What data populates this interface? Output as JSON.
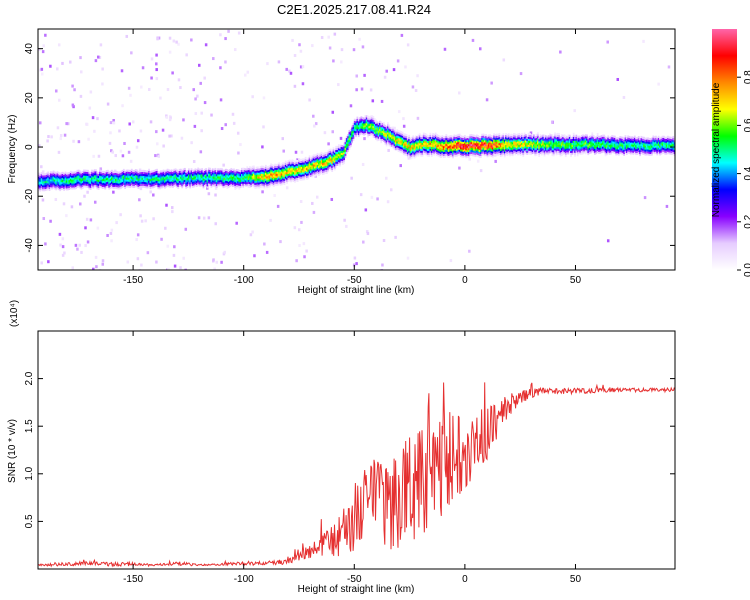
{
  "title": "C2E1.2025.217.08.41.R24",
  "chart_data": [
    {
      "type": "heatmap",
      "xlabel": "Height of straight line (km)",
      "ylabel": "Frequency (Hz)",
      "xlim": [
        -193,
        95
      ],
      "ylim": [
        -50,
        48
      ],
      "xticks": [
        "-150",
        "-100",
        "-50",
        "0",
        "50"
      ],
      "xtick_values": [
        -150,
        -100,
        -50,
        0,
        50
      ],
      "yticks": [
        "-40",
        "-20",
        "0",
        "20",
        "40"
      ],
      "ytick_values": [
        -40,
        -20,
        0,
        20,
        40
      ],
      "colorbar": {
        "label": "Normalized spectral amplitude",
        "range": [
          0,
          1
        ],
        "ticks": [
          "0.0",
          "0.2",
          "0.4",
          "0.6",
          "0.8"
        ],
        "tick_values": [
          0,
          0.2,
          0.4,
          0.6,
          0.8
        ],
        "colors": [
          "#ffffff",
          "#e6ccff",
          "#8800ff",
          "#0000ff",
          "#00ffff",
          "#00ff00",
          "#ffff00",
          "#ff8800",
          "#ff0000",
          "#ff66aa"
        ]
      },
      "ridge": {
        "x": [
          -193,
          -180,
          -160,
          -140,
          -120,
          -100,
          -90,
          -80,
          -70,
          -60,
          -55,
          -50,
          -45,
          -40,
          -35,
          -30,
          -25,
          -20,
          -15,
          -10,
          -5,
          0,
          10,
          20,
          40,
          60,
          80,
          95
        ],
        "freq": [
          -14,
          -13.5,
          -13,
          -13,
          -12.5,
          -12.5,
          -12,
          -10,
          -8,
          -5,
          -2,
          8,
          9,
          7,
          5,
          2,
          0,
          1,
          1,
          0.5,
          0.5,
          0.5,
          0.5,
          1,
          1,
          1,
          0.5,
          0.5
        ],
        "amplitude": [
          0.45,
          0.5,
          0.5,
          0.5,
          0.5,
          0.55,
          0.75,
          0.7,
          0.7,
          0.7,
          0.6,
          0.5,
          0.6,
          0.6,
          0.65,
          0.7,
          0.7,
          0.7,
          0.75,
          0.8,
          0.9,
          0.95,
          0.9,
          0.7,
          0.6,
          0.55,
          0.5,
          0.5
        ]
      }
    },
    {
      "type": "line",
      "xlabel": "Height of straight line (km)",
      "ylabel": "SNR (10 * v/v)",
      "y_multiplier": "(x10⁴)",
      "xlim": [
        -193,
        95
      ],
      "ylim": [
        0,
        2.5
      ],
      "xticks": [
        "-150",
        "-100",
        "-50",
        "0",
        "50"
      ],
      "xtick_values": [
        -150,
        -100,
        -50,
        0,
        50
      ],
      "yticks": [
        "0.5",
        "1.0",
        "1.5",
        "2.0"
      ],
      "ytick_values": [
        0.5,
        1.0,
        1.5,
        2.0
      ],
      "line_color": "#e53030",
      "series": [
        {
          "x": [
            -193,
            -180,
            -170,
            -160,
            -150,
            -140,
            -130,
            -120,
            -110,
            -100,
            -90,
            -80,
            -75,
            -70,
            -65,
            -60,
            -55,
            -50,
            -45,
            -40,
            -35,
            -30,
            -25,
            -20,
            -15,
            -10,
            -5,
            0,
            5,
            10,
            15,
            20,
            25,
            30,
            40,
            50,
            60,
            70,
            80,
            90,
            95
          ],
          "y": [
            0.04,
            0.05,
            0.06,
            0.05,
            0.05,
            0.04,
            0.06,
            0.04,
            0.05,
            0.06,
            0.06,
            0.08,
            0.12,
            0.18,
            0.25,
            0.3,
            0.38,
            0.5,
            0.6,
            0.75,
            0.65,
            0.75,
            0.85,
            0.95,
            1.0,
            1.1,
            1.2,
            1.3,
            1.3,
            1.4,
            1.6,
            1.72,
            1.8,
            1.85,
            1.87,
            1.87,
            1.88,
            1.88,
            1.88,
            1.88,
            1.89
          ],
          "noise": [
            0.01,
            0.02,
            0.02,
            0.02,
            0.02,
            0.01,
            0.02,
            0.01,
            0.01,
            0.02,
            0.02,
            0.03,
            0.05,
            0.08,
            0.12,
            0.18,
            0.25,
            0.35,
            0.4,
            0.45,
            0.45,
            0.55,
            0.6,
            0.6,
            0.55,
            0.55,
            0.5,
            0.45,
            0.4,
            0.3,
            0.2,
            0.12,
            0.07,
            0.05,
            0.03,
            0.03,
            0.03,
            0.02,
            0.02,
            0.02,
            0.02
          ]
        }
      ]
    }
  ]
}
